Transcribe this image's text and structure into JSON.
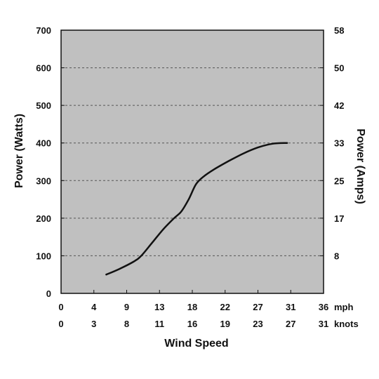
{
  "chart_data": {
    "type": "line",
    "ylabel_left": "Power (Watts)",
    "ylabel_right": "Power (Amps)",
    "xlabel": "Wind Speed",
    "ylim": [
      0,
      700
    ],
    "xlim": [
      0,
      36
    ],
    "grid": "horizontal-dashed",
    "colors": {
      "plot_bg": "#c0c0c0",
      "line": "#111111",
      "grid": "#555555"
    },
    "y_ticks_left": [
      0,
      100,
      200,
      300,
      400,
      500,
      600,
      700
    ],
    "y_ticks_right": [
      {
        "watts": 100,
        "label": "8"
      },
      {
        "watts": 200,
        "label": "17"
      },
      {
        "watts": 300,
        "label": "25"
      },
      {
        "watts": 400,
        "label": "33"
      },
      {
        "watts": 500,
        "label": "42"
      },
      {
        "watts": 600,
        "label": "50"
      },
      {
        "watts": 700,
        "label": "58"
      }
    ],
    "x_rows": [
      {
        "unit": "mph",
        "labels": [
          "0",
          "4",
          "9",
          "13",
          "18",
          "22",
          "27",
          "31",
          "36"
        ]
      },
      {
        "unit": "knots",
        "labels": [
          "0",
          "3",
          "8",
          "11",
          "16",
          "19",
          "23",
          "27",
          "31"
        ]
      }
    ],
    "series": [
      {
        "x": [
          6.2,
          8,
          10,
          11,
          12.5,
          14,
          15.5,
          16.5,
          17.5,
          18.5,
          19.5,
          21,
          23,
          25,
          27,
          29,
          31
        ],
        "y": [
          50,
          65,
          85,
          100,
          135,
          170,
          200,
          218,
          250,
          290,
          310,
          330,
          352,
          372,
          388,
          398,
          400
        ]
      }
    ]
  }
}
